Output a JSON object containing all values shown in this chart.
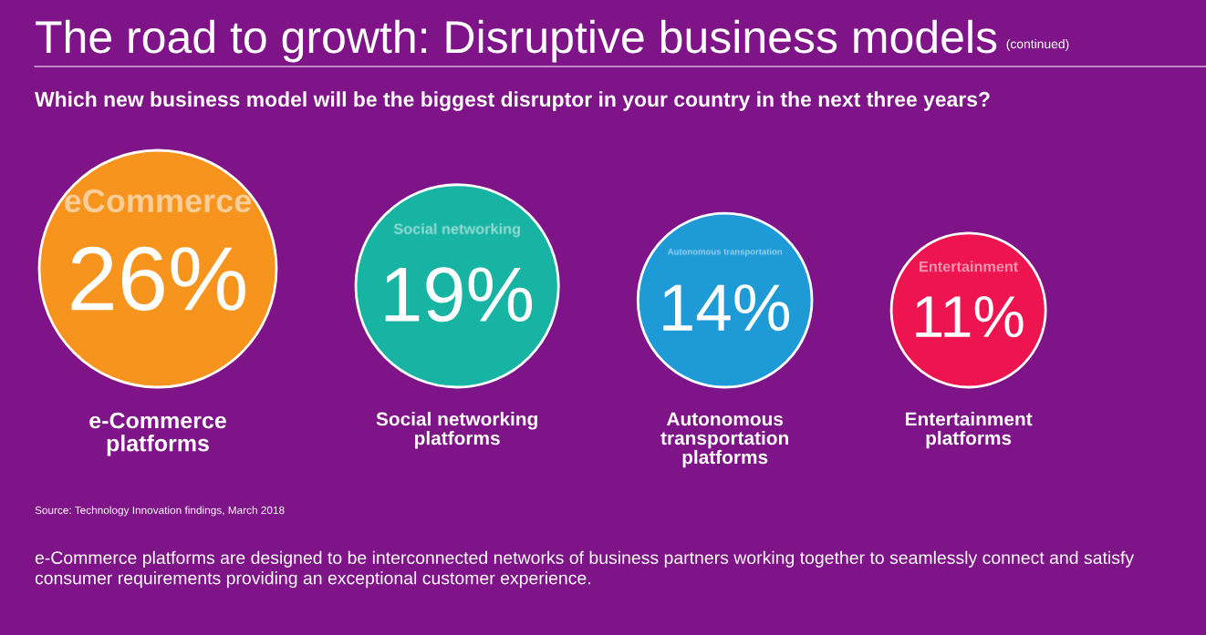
{
  "chart_data": {
    "type": "other",
    "title": "The road to growth: Disruptive business models",
    "subtitle": "Which new business model will be the biggest disruptor in your country in the next three years?",
    "categories": [
      "e-Commerce\nplatforms",
      "Social networking\nplatforms",
      "Autonomous\ntransportation\nplatforms",
      "Entertainment\nplatforms"
    ],
    "values": [
      26,
      19,
      14,
      11
    ],
    "value_labels": [
      "26%",
      "19%",
      "14%",
      "11%"
    ],
    "colors": [
      "#f7941d",
      "#17b3a3",
      "#1e9ad6",
      "#ee1450"
    ],
    "annotations": [
      "(continued)",
      "Source: Technology Innovation findings, March 2018",
      "e-Commerce platforms are designed to be interconnected networks of business partners working together to seamlessly connect and satisfy consumer requirements providing an exceptional customer experience.",
      {
        "text": "eCommerce",
        "x": "e-Commerce\nplatforms"
      },
      {
        "text": "Social networking",
        "x": "Social networking\nplatforms"
      },
      {
        "text": "Autonomous transportation",
        "x": "Autonomous\ntransportation\nplatforms"
      },
      {
        "text": "Entertainment",
        "x": "Entertainment\nplatforms"
      }
    ]
  }
}
